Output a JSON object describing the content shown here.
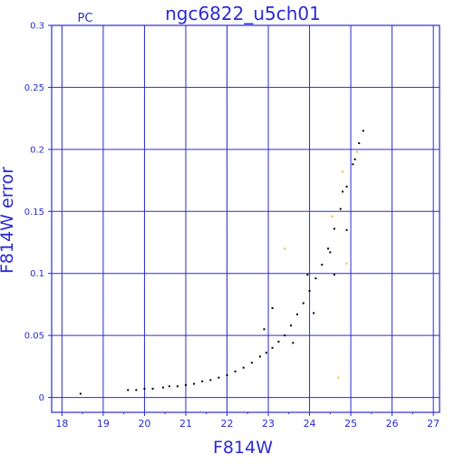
{
  "chart_data": {
    "type": "scatter",
    "title": "ngc6822_u5ch01",
    "corner_label": "PC",
    "xlabel": "F814W",
    "ylabel": "F814W error",
    "xlim": [
      17.75,
      27.15
    ],
    "ylim": [
      -0.012,
      0.3
    ],
    "x_ticks": [
      "18",
      "19",
      "20",
      "21",
      "22",
      "23",
      "24",
      "25",
      "26",
      "27"
    ],
    "y_ticks": [
      "0",
      "0.05",
      "0.1",
      "0.15",
      "0.2",
      "0.25",
      "0.3"
    ],
    "grid": true,
    "colors": {
      "axis": "#2b2bd6",
      "grid": "#2b2bd6",
      "main_points": "#000000",
      "flagged_points": "#e6c619"
    },
    "series": [
      {
        "points": [
          [
            18.45,
            0.003
          ],
          [
            19.6,
            0.006
          ],
          [
            19.8,
            0.006
          ],
          [
            20.0,
            0.007
          ],
          [
            20.2,
            0.007
          ],
          [
            20.45,
            0.008
          ],
          [
            20.6,
            0.009
          ],
          [
            20.8,
            0.009
          ],
          [
            21.0,
            0.01
          ],
          [
            21.2,
            0.011
          ],
          [
            21.4,
            0.013
          ],
          [
            21.6,
            0.014
          ],
          [
            21.8,
            0.016
          ],
          [
            22.0,
            0.018
          ],
          [
            22.2,
            0.021
          ],
          [
            22.4,
            0.024
          ],
          [
            22.6,
            0.028
          ],
          [
            22.8,
            0.033
          ],
          [
            22.95,
            0.036
          ],
          [
            23.1,
            0.04
          ],
          [
            23.25,
            0.045
          ],
          [
            23.4,
            0.05
          ],
          [
            23.55,
            0.058
          ],
          [
            23.7,
            0.067
          ],
          [
            23.85,
            0.076
          ],
          [
            24.0,
            0.086
          ],
          [
            24.15,
            0.096
          ],
          [
            24.3,
            0.107
          ],
          [
            24.45,
            0.12
          ],
          [
            24.6,
            0.136
          ],
          [
            24.75,
            0.152
          ],
          [
            24.9,
            0.17
          ],
          [
            25.05,
            0.188
          ],
          [
            25.2,
            0.205
          ],
          [
            25.3,
            0.215
          ],
          [
            22.9,
            0.055
          ],
          [
            23.6,
            0.044
          ],
          [
            24.1,
            0.068
          ],
          [
            24.6,
            0.099
          ],
          [
            24.9,
            0.135
          ],
          [
            23.95,
            0.099
          ],
          [
            24.5,
            0.117
          ],
          [
            24.8,
            0.166
          ],
          [
            25.1,
            0.192
          ],
          [
            23.1,
            0.072
          ]
        ]
      },
      {
        "points": [
          [
            24.7,
            0.016
          ],
          [
            24.9,
            0.108
          ],
          [
            24.8,
            0.182
          ],
          [
            24.55,
            0.146
          ],
          [
            25.15,
            0.198
          ],
          [
            23.4,
            0.12
          ]
        ]
      }
    ]
  }
}
